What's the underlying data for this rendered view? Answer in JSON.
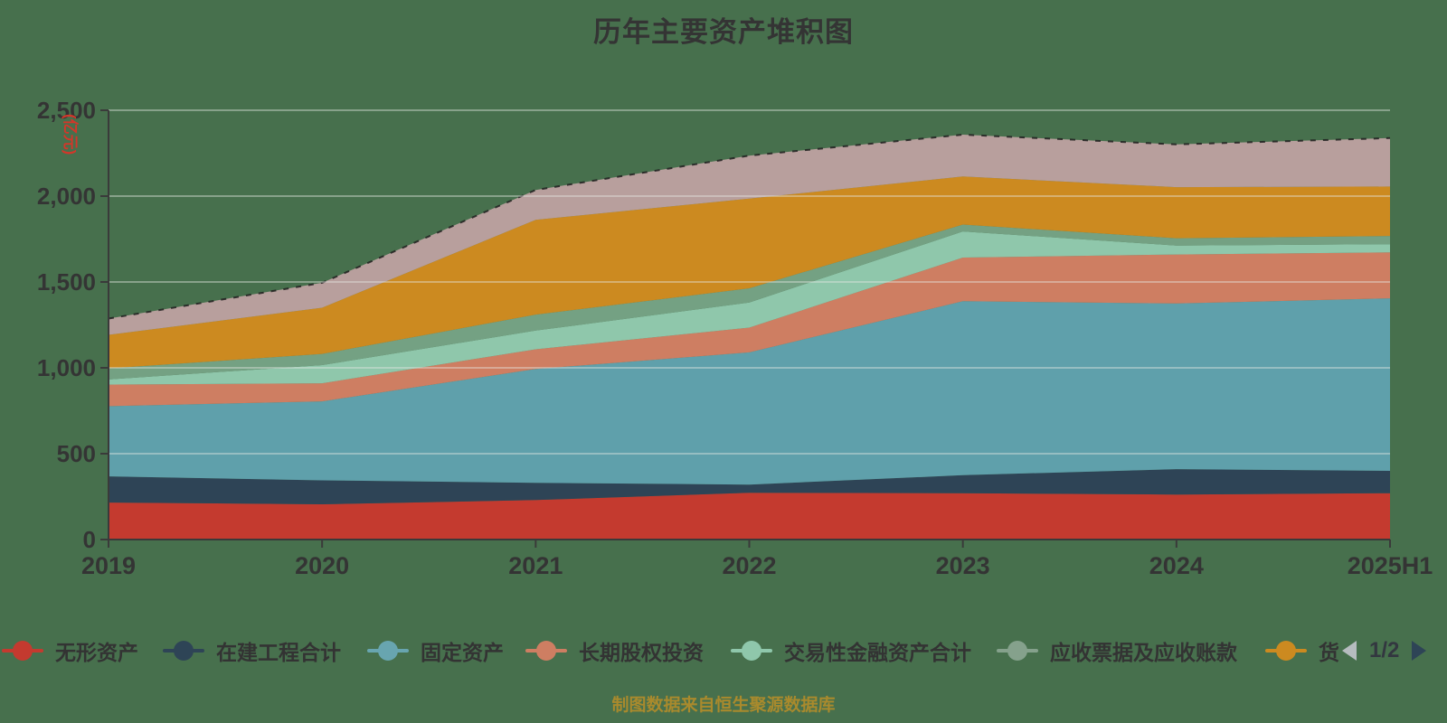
{
  "title": "历年主要资产堆积图",
  "footer": "制图数据来自恒生聚源数据库",
  "y_axis": {
    "unit": "(亿元)",
    "unit_color": "#d2372a",
    "tick_labels": [
      "0",
      "500",
      "1,000",
      "1,500",
      "2,000",
      "2,500"
    ]
  },
  "x_axis": {
    "tick_labels": [
      "2019",
      "2020",
      "2021",
      "2022",
      "2023",
      "2024",
      "2025H1"
    ]
  },
  "legend": {
    "items": [
      {
        "label": "无形资产",
        "color": "#c43a2f"
      },
      {
        "label": "在建工程合计",
        "color": "#2e4456"
      },
      {
        "label": "固定资产",
        "color": "#68a5b0"
      },
      {
        "label": "长期股权投资",
        "color": "#ce7e62"
      },
      {
        "label": "交易性金融资产合计",
        "color": "#8fc7ab"
      },
      {
        "label": "应收票据及应收账款",
        "color": "#85a18c"
      },
      {
        "label": "货",
        "color": "#cc8a20"
      }
    ],
    "pagination": {
      "current": "1/2"
    }
  },
  "colors": {
    "background": "#47704d",
    "grid_line": "#e6e8e4",
    "axis_line": "#3a3a3a",
    "tick_label": "#343434",
    "title": "#343434",
    "footer": "#a98a2d"
  },
  "chart_data": {
    "type": "area",
    "stacked": true,
    "title": "历年主要资产堆积图",
    "ylabel": "(亿元)",
    "ylim": [
      0,
      2500
    ],
    "grid": true,
    "legend_position": "bottom",
    "categories": [
      "2019",
      "2020",
      "2021",
      "2022",
      "2023",
      "2024",
      "2025H1"
    ],
    "series": [
      {
        "name": "无形资产",
        "color": "#c43a2f",
        "values": [
          215,
          205,
          230,
          272,
          270,
          262,
          270
        ]
      },
      {
        "name": "在建工程合计",
        "color": "#2e4456",
        "values": [
          153,
          140,
          100,
          48,
          105,
          148,
          130
        ]
      },
      {
        "name": "固定资产",
        "color": "#5fa0ab",
        "values": [
          409,
          460,
          663,
          770,
          1013,
          965,
          1005
        ]
      },
      {
        "name": "长期股权投资",
        "color": "#ce7e62",
        "values": [
          125,
          105,
          115,
          144,
          254,
          285,
          267
        ]
      },
      {
        "name": "交易性金融资产合计",
        "color": "#8fc7ab",
        "values": [
          30,
          106,
          109,
          146,
          152,
          52,
          48
        ]
      },
      {
        "name": "应收票据及应收账款",
        "color": "#74a183",
        "values": [
          65,
          65,
          93,
          83,
          40,
          43,
          48
        ]
      },
      {
        "name": "货",
        "color": "#cc8a20",
        "values": [
          195,
          269,
          552,
          523,
          280,
          297,
          288
        ]
      },
      {
        "name": "",
        "color": "#b89f9d",
        "values": [
          95,
          145,
          174,
          250,
          244,
          249,
          282
        ]
      }
    ]
  }
}
